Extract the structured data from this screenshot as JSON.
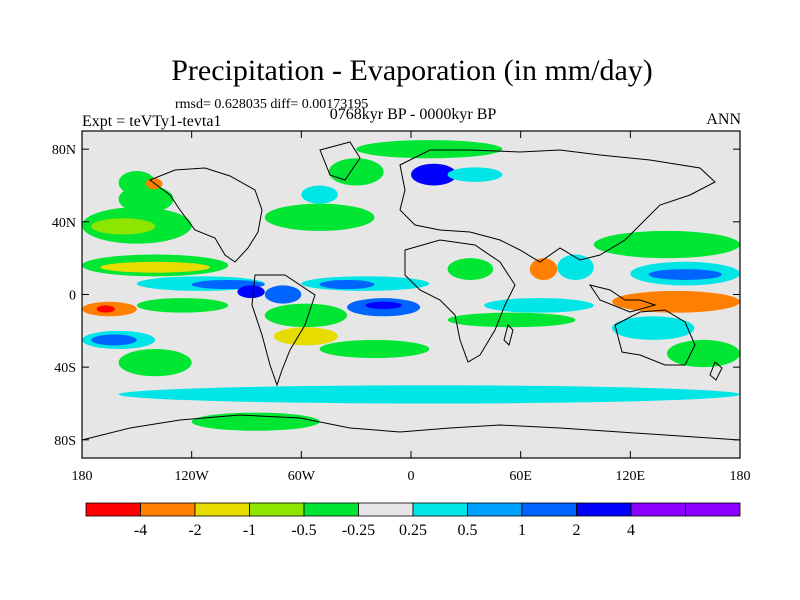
{
  "chart_data": {
    "type": "heatmap",
    "title": "Precipitation - Evaporation (in mm/day)",
    "stats": "rmsd= 0.628035 diff= 0.00173195",
    "left_label": "Expt = teVTy1-tevta1",
    "center_label": "0768kyr BP - 0000kyr BP",
    "right_label": "ANN",
    "x_ticks": [
      {
        "value": -180,
        "label": "180"
      },
      {
        "value": -120,
        "label": "120W"
      },
      {
        "value": -60,
        "label": "60W"
      },
      {
        "value": 0,
        "label": "0"
      },
      {
        "value": 60,
        "label": "60E"
      },
      {
        "value": 120,
        "label": "120E"
      },
      {
        "value": 180,
        "label": "180"
      }
    ],
    "y_ticks": [
      {
        "value": 80,
        "label": "80N"
      },
      {
        "value": 40,
        "label": "40N"
      },
      {
        "value": 0,
        "label": "0"
      },
      {
        "value": -40,
        "label": "40S"
      },
      {
        "value": -80,
        "label": "80S"
      }
    ],
    "xlim": [
      -180,
      180
    ],
    "ylim": [
      -90,
      90
    ],
    "levels": [
      {
        "label": "",
        "color": "#ff0000"
      },
      {
        "label": "-4",
        "color": "#ff8000"
      },
      {
        "label": "-2",
        "color": "#e6dc00"
      },
      {
        "label": "-1",
        "color": "#8ce600"
      },
      {
        "label": "-0.5",
        "color": "#00e632"
      },
      {
        "label": "-0.25",
        "color": "#e6e6e6"
      },
      {
        "label": "0.25",
        "color": "#00e6e6"
      },
      {
        "label": "0.5",
        "color": "#00a0ff"
      },
      {
        "label": "1",
        "color": "#0064ff"
      },
      {
        "label": "2",
        "color": "#0000ff"
      },
      {
        "label": "4",
        "color": "#8c00ff"
      },
      {
        "label": "",
        "color": "#8c00ff"
      }
    ],
    "regions": [
      {
        "name": "n-pacific-band",
        "lon": [
          -180,
          -120
        ],
        "lat": [
          28,
          48
        ],
        "level": 4
      },
      {
        "name": "n-pacific-inner",
        "lon": [
          -175,
          -140
        ],
        "lat": [
          33,
          42
        ],
        "level": 3
      },
      {
        "name": "n-pacific-green2",
        "lon": [
          -160,
          -130
        ],
        "lat": [
          45,
          60
        ],
        "level": 4
      },
      {
        "name": "alaska-green",
        "lon": [
          -160,
          -140
        ],
        "lat": [
          55,
          68
        ],
        "level": 4
      },
      {
        "name": "alaska-red",
        "lon": [
          -145,
          -136
        ],
        "lat": [
          58,
          64
        ],
        "level": 1
      },
      {
        "name": "pacific-itcz-green",
        "lon": [
          -180,
          -100
        ],
        "lat": [
          10,
          22
        ],
        "level": 4
      },
      {
        "name": "pacific-itcz-yellow",
        "lon": [
          -170,
          -110
        ],
        "lat": [
          12,
          18
        ],
        "level": 2
      },
      {
        "name": "pacific-itcz-cyan",
        "lon": [
          -150,
          -80
        ],
        "lat": [
          2,
          10
        ],
        "level": 6
      },
      {
        "name": "pacific-itcz-blue",
        "lon": [
          -120,
          -80
        ],
        "lat": [
          3,
          8
        ],
        "level": 8
      },
      {
        "name": "se-pacific-orange",
        "lon": [
          -180,
          -150
        ],
        "lat": [
          -12,
          -4
        ],
        "level": 1
      },
      {
        "name": "se-pacific-red",
        "lon": [
          -172,
          -162
        ],
        "lat": [
          -10,
          -6
        ],
        "level": 0
      },
      {
        "name": "spcz-green",
        "lon": [
          -150,
          -100
        ],
        "lat": [
          -10,
          -2
        ],
        "level": 4
      },
      {
        "name": "s-pacific-cyan",
        "lon": [
          -180,
          -140
        ],
        "lat": [
          -30,
          -20
        ],
        "level": 6
      },
      {
        "name": "s-pacific-blue",
        "lon": [
          -175,
          -150
        ],
        "lat": [
          -28,
          -22
        ],
        "level": 8
      },
      {
        "name": "s-pacific-green",
        "lon": [
          -160,
          -120
        ],
        "lat": [
          -45,
          -30
        ],
        "level": 4
      },
      {
        "name": "e-pacific-blue",
        "lon": [
          -95,
          -80
        ],
        "lat": [
          -2,
          5
        ],
        "level": 9
      },
      {
        "name": "amazon-blue",
        "lon": [
          -80,
          -60
        ],
        "lat": [
          -5,
          5
        ],
        "level": 8
      },
      {
        "name": "amazon-green",
        "lon": [
          -80,
          -35
        ],
        "lat": [
          -18,
          -5
        ],
        "level": 4
      },
      {
        "name": "atl-itcz-cyan",
        "lon": [
          -60,
          10
        ],
        "lat": [
          2,
          10
        ],
        "level": 6
      },
      {
        "name": "atl-itcz-blue",
        "lon": [
          -50,
          -20
        ],
        "lat": [
          3,
          8
        ],
        "level": 8
      },
      {
        "name": "atl-eq-blue",
        "lon": [
          -35,
          5
        ],
        "lat": [
          -12,
          -2
        ],
        "level": 8
      },
      {
        "name": "atl-eq-dark",
        "lon": [
          -25,
          -5
        ],
        "lat": [
          -8,
          -4
        ],
        "level": 9
      },
      {
        "name": "atl-sub-yellow",
        "lon": [
          -75,
          -40
        ],
        "lat": [
          -28,
          -18
        ],
        "level": 2
      },
      {
        "name": "s-atl-green",
        "lon": [
          -50,
          10
        ],
        "lat": [
          -35,
          -25
        ],
        "level": 4
      },
      {
        "name": "n-atl-green",
        "lon": [
          -80,
          -20
        ],
        "lat": [
          35,
          50
        ],
        "level": 4
      },
      {
        "name": "n-atl-cyan",
        "lon": [
          -60,
          -40
        ],
        "lat": [
          50,
          60
        ],
        "level": 6
      },
      {
        "name": "greenland-green",
        "lon": [
          -45,
          -15
        ],
        "lat": [
          60,
          75
        ],
        "level": 4
      },
      {
        "name": "arctic-green",
        "lon": [
          -30,
          50
        ],
        "lat": [
          75,
          85
        ],
        "level": 4
      },
      {
        "name": "europe-blue",
        "lon": [
          0,
          25
        ],
        "lat": [
          60,
          72
        ],
        "level": 9
      },
      {
        "name": "europe-cyan",
        "lon": [
          20,
          50
        ],
        "lat": [
          62,
          70
        ],
        "level": 6
      },
      {
        "name": "africa-green",
        "lon": [
          20,
          45
        ],
        "lat": [
          8,
          20
        ],
        "level": 4
      },
      {
        "name": "india-orange",
        "lon": [
          65,
          80
        ],
        "lat": [
          8,
          20
        ],
        "level": 1
      },
      {
        "name": "bay-bengal-cyan",
        "lon": [
          80,
          100
        ],
        "lat": [
          8,
          22
        ],
        "level": 6
      },
      {
        "name": "io-eq-cyan",
        "lon": [
          40,
          100
        ],
        "lat": [
          -10,
          -2
        ],
        "level": 6
      },
      {
        "name": "io-green",
        "lon": [
          20,
          90
        ],
        "lat": [
          -18,
          -10
        ],
        "level": 4
      },
      {
        "name": "maritime-red",
        "lon": [
          125,
          170
        ],
        "lat": [
          -6,
          -2
        ],
        "level": 0
      },
      {
        "name": "maritime-orange",
        "lon": [
          110,
          180
        ],
        "lat": [
          -10,
          2
        ],
        "level": 1
      },
      {
        "name": "w-pacific-cyan",
        "lon": [
          120,
          180
        ],
        "lat": [
          5,
          18
        ],
        "level": 6
      },
      {
        "name": "w-pacific-blue",
        "lon": [
          130,
          170
        ],
        "lat": [
          8,
          14
        ],
        "level": 8
      },
      {
        "name": "nw-pacific-green",
        "lon": [
          100,
          180
        ],
        "lat": [
          20,
          35
        ],
        "level": 4
      },
      {
        "name": "australia-cyan",
        "lon": [
          110,
          155
        ],
        "lat": [
          -25,
          -12
        ],
        "level": 6
      },
      {
        "name": "austral-green",
        "lon": [
          140,
          180
        ],
        "lat": [
          -40,
          -25
        ],
        "level": 4
      },
      {
        "name": "southern-ocean-cyan",
        "lon": [
          -160,
          180
        ],
        "lat": [
          -60,
          -50
        ],
        "level": 6
      },
      {
        "name": "antarctic-green",
        "lon": [
          -120,
          -50
        ],
        "lat": [
          -75,
          -65
        ],
        "level": 4
      }
    ]
  }
}
